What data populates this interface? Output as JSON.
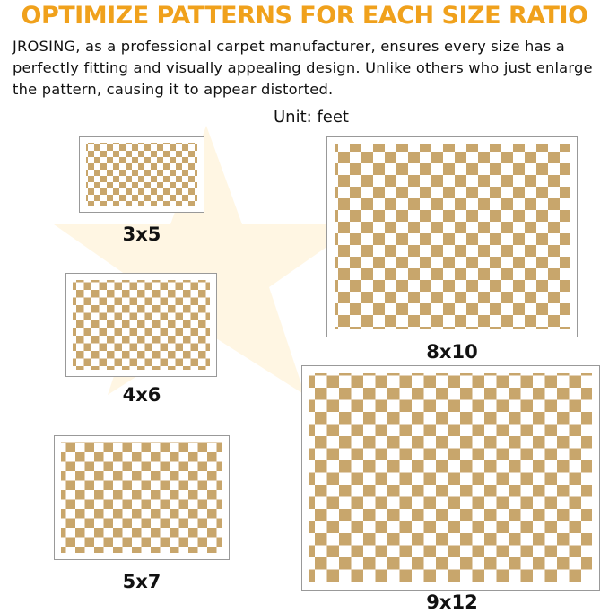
{
  "header": {
    "title": "OPTIMIZE PATTERNS FOR EACH SIZE RATIO",
    "description": "JROSING, as a professional carpet manufacturer, ensures every size has a perfectly fitting and visually appealing design. Unlike others who just enlarge the pattern, causing it to appear distorted.",
    "unit": "Unit: feet"
  },
  "rugs": [
    {
      "label": "3x5"
    },
    {
      "label": "4x6"
    },
    {
      "label": "5x7"
    },
    {
      "label": "8x10"
    },
    {
      "label": "9x12"
    }
  ]
}
